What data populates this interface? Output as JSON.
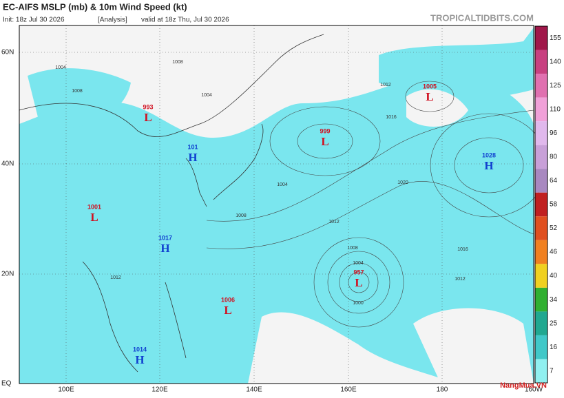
{
  "header": {
    "title": "EC-AIFS MSLP (mb) & 10m Wind Speed (kt)",
    "init": "Init: 18z Jul 30 2026",
    "analysis": "[Analysis]",
    "valid": "valid at 18z Thu, Jul 30 2026",
    "site": "TROPICALTIDBITS.COM"
  },
  "map": {
    "lat_labels": [
      "60N",
      "40N",
      "20N",
      "EQ"
    ],
    "lon_labels": [
      "100E",
      "120E",
      "140E",
      "160E",
      "180",
      "160W"
    ],
    "centers": [
      {
        "type": "L",
        "value": "993"
      },
      {
        "type": "H",
        "value": "101"
      },
      {
        "type": "L",
        "value": "999"
      },
      {
        "type": "L",
        "value": "1005"
      },
      {
        "type": "H",
        "value": "1028"
      },
      {
        "type": "L",
        "value": "1001"
      },
      {
        "type": "H",
        "value": "1017"
      },
      {
        "type": "L",
        "value": "957"
      },
      {
        "type": "L",
        "value": "1006"
      },
      {
        "type": "H",
        "value": "1014"
      }
    ],
    "isobar_labels": [
      "1004",
      "1004",
      "1008",
      "1008",
      "1012",
      "1016",
      "1016",
      "1020",
      "1012",
      "1008",
      "1004",
      "1000",
      "1012",
      "1008",
      "1012",
      "1004"
    ]
  },
  "colorbar": {
    "ticks": [
      155,
      140,
      125,
      110,
      96,
      80,
      64,
      58,
      52,
      46,
      40,
      34,
      25,
      16,
      7
    ],
    "colors": [
      "#a0184a",
      "#c84080",
      "#e070b0",
      "#f0a0d8",
      "#e0b8ec",
      "#c8a0d8",
      "#a888c0",
      "#c02020",
      "#e05020",
      "#f08020",
      "#f0d020",
      "#30b030",
      "#20a890",
      "#40c8c8",
      "#90f0f0"
    ]
  },
  "watermark": "NangMua.VN"
}
